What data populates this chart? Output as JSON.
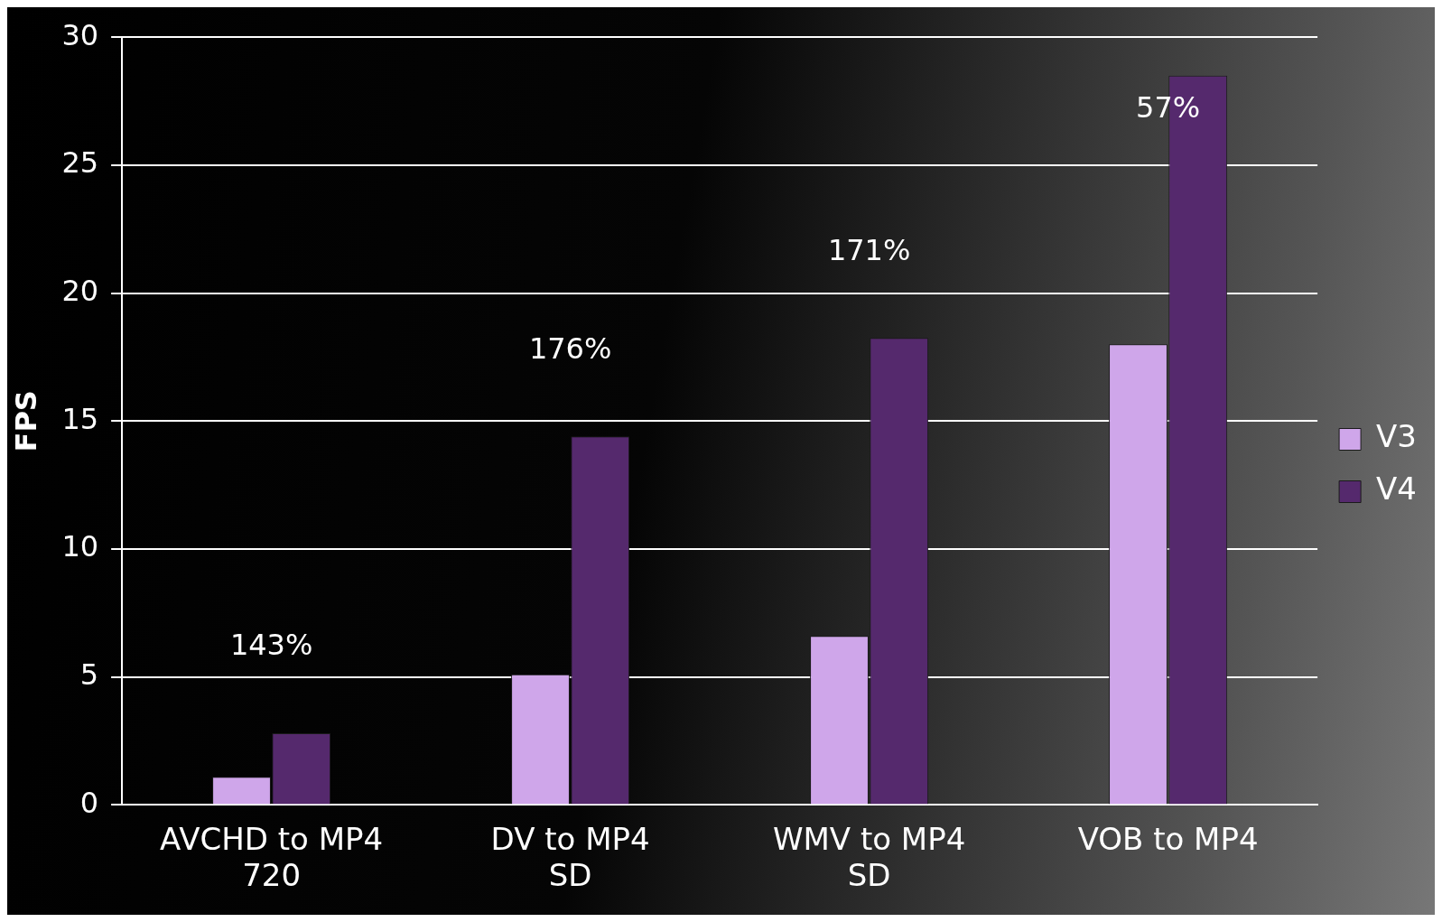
{
  "chart_data": {
    "type": "bar",
    "ylabel": "FPS",
    "categories": [
      "AVCHD to MP4 720",
      "DV to MP4 SD",
      "WMV to MP4 SD",
      "VOB to MP4"
    ],
    "series": [
      {
        "name": "V3",
        "color": "#cfa6ea",
        "values": [
          1.1,
          5.1,
          6.6,
          18.0
        ]
      },
      {
        "name": "V4",
        "color": "#55296d",
        "values": [
          2.8,
          14.4,
          18.25,
          28.5
        ]
      }
    ],
    "ylim": [
      0,
      30
    ],
    "yticks": [
      0,
      5,
      10,
      15,
      20,
      25,
      30
    ],
    "grid": "y",
    "legend": "right",
    "annotations": [
      "143%",
      "176%",
      "171%",
      "57%"
    ]
  }
}
